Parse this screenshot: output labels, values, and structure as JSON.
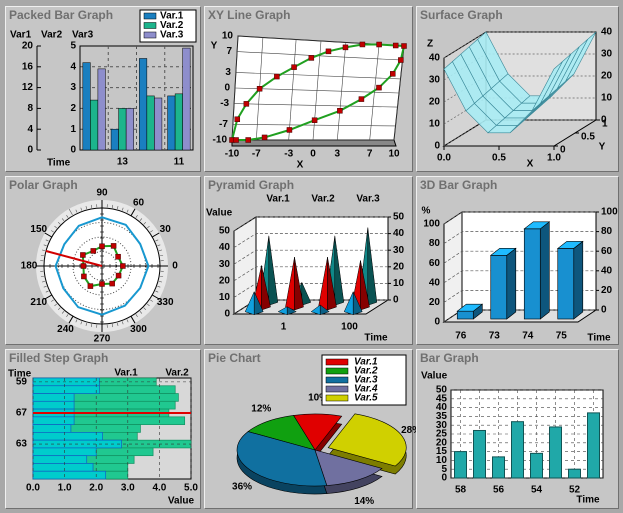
{
  "chart_data": [
    {
      "type": "packed_bar",
      "title": "Packed Bar Graph",
      "series_labels": [
        "Var1",
        "Var2",
        "Var3"
      ],
      "categories": [
        null,
        "13",
        null,
        "11"
      ],
      "x_label": "Time",
      "series": [
        {
          "name": "Var.1",
          "color": "#1a7fc0",
          "values": [
            4.2,
            1.0,
            4.4,
            2.6
          ]
        },
        {
          "name": "Var.2",
          "color": "#1cb48c",
          "values": [
            2.4,
            2.0,
            2.6,
            2.7
          ]
        },
        {
          "name": "Var.3",
          "color": "#8e8ecc",
          "values": [
            3.9,
            2.0,
            2.5,
            4.9
          ]
        }
      ],
      "ylim": [
        0,
        5
      ],
      "yticks": [
        0,
        1,
        2,
        3,
        4,
        5
      ],
      "y2lim": [
        0,
        20
      ],
      "y2ticks": [
        0,
        4,
        8,
        12,
        16,
        20
      ],
      "grid": true
    },
    {
      "type": "xy_line",
      "title": "XY Line Graph",
      "x_label": "X",
      "y_label": "Y",
      "xlim": [
        -10,
        10
      ],
      "xticks": [
        -10,
        -7,
        -3,
        0,
        3,
        7,
        10
      ],
      "ylim": [
        -10,
        10
      ],
      "yticks": [
        -10,
        -7,
        -3,
        0,
        3,
        7,
        10
      ],
      "series": [
        {
          "color": "#20a020",
          "marker_color": "#c00000",
          "x": [
            -10,
            -9.5,
            -8.5,
            -7,
            -5,
            -3,
            -1,
            1,
            3,
            5,
            7,
            9,
            10,
            9.8,
            9,
            7.5,
            5.5,
            3,
            0,
            -3,
            -6,
            -8,
            -9.5
          ],
          "y": [
            -10,
            -6,
            -3,
            0,
            2.5,
            4.5,
            6.5,
            8,
            9,
            9.8,
            10,
            10,
            10,
            7,
            4,
            1,
            -1.5,
            -4,
            -6,
            -8,
            -9.5,
            -10,
            -10
          ]
        }
      ]
    },
    {
      "type": "surface",
      "title": "Surface Graph",
      "x_label": "X",
      "y_label": "Y",
      "z_label": "Z",
      "x": [
        0,
        0.2,
        0.4,
        0.6,
        0.8,
        1.0
      ],
      "y": [
        0,
        0.2,
        0.4,
        0.6,
        0.8,
        1.0
      ],
      "z": [
        [
          35,
          16,
          6,
          6,
          16,
          35
        ],
        [
          36,
          17,
          7,
          7,
          17,
          36
        ],
        [
          37,
          18,
          8,
          8,
          18,
          37
        ],
        [
          38,
          19,
          9,
          9,
          19,
          38
        ],
        [
          39,
          20,
          10,
          10,
          20,
          39
        ],
        [
          40,
          21,
          11,
          11,
          21,
          40
        ]
      ],
      "xlim": [
        0,
        1
      ],
      "xticks": [
        {
          "value": 0,
          "label": "0.0"
        },
        {
          "value": 0.5,
          "label": "0.5"
        },
        {
          "value": 1,
          "label": "1.0"
        }
      ],
      "ylim": [
        0,
        1
      ],
      "yticks": [
        0,
        0.5,
        1
      ],
      "zlim": [
        0,
        40
      ],
      "zticks": [
        0,
        10,
        20,
        30,
        40
      ],
      "color": "#a8ecf4"
    },
    {
      "type": "polar",
      "title": "Polar Graph",
      "rlim": [
        0,
        10
      ],
      "thetaticks": [
        0,
        30,
        60,
        90,
        150,
        180,
        210,
        240,
        270,
        300,
        330
      ],
      "series": [
        {
          "color": "#1898d0",
          "theta": [
            0,
            30,
            60,
            90,
            120,
            150,
            180,
            210,
            240,
            270,
            300,
            330
          ],
          "r": [
            8,
            7.6,
            8.2,
            8.4,
            8,
            7.5,
            8,
            7.7,
            8.2,
            8.4,
            7.9,
            7.6
          ]
        },
        {
          "color": "#20a020",
          "marker_color": "#c00000",
          "theta": [
            0,
            30,
            60,
            90,
            120,
            150,
            180,
            210,
            240,
            270,
            300,
            330
          ],
          "r": [
            3.6,
            3.2,
            4,
            3.4,
            3,
            3.8,
            3.2,
            3.6,
            4,
            3.1,
            3.5,
            3.3
          ]
        },
        {
          "color": "#d00000",
          "theta": [
            165
          ],
          "r": [
            10
          ]
        }
      ]
    },
    {
      "type": "pyramid",
      "title": "Pyramid Graph",
      "y_label": "Value",
      "x_label": "Time",
      "categories": [
        null,
        "1",
        null,
        "100"
      ],
      "series": [
        {
          "name": "Var.1",
          "color": "#10a0e0",
          "values": [
            12,
            3,
            4,
            12
          ]
        },
        {
          "name": "Var.2",
          "color": "#e00000",
          "values": [
            25,
            30,
            30,
            28
          ]
        },
        {
          "name": "Var.3",
          "color": "#108888",
          "values": [
            40,
            12,
            40,
            45
          ]
        }
      ],
      "ylim": [
        0,
        50
      ],
      "yticks": [
        0,
        10,
        20,
        30,
        40,
        50
      ],
      "y2lim": [
        0,
        50
      ],
      "y2ticks": [
        0,
        10,
        20,
        30,
        40,
        50
      ]
    },
    {
      "type": "bar3d",
      "title": "3D Bar Graph",
      "y_label": "%",
      "x_label": "Time",
      "categories": [
        "76",
        "73",
        "74",
        "75"
      ],
      "values": [
        8,
        65,
        92,
        72
      ],
      "color": "#1890d0",
      "ylim": [
        0,
        100
      ],
      "yticks": [
        0,
        20,
        40,
        60,
        80,
        100
      ],
      "y2lim": [
        0,
        100
      ],
      "y2ticks": [
        0,
        20,
        40,
        60,
        80,
        100
      ]
    },
    {
      "type": "filled_step_h",
      "title": "Filled Step Graph",
      "y_label": "Time",
      "x_label": "Value",
      "categories": [
        "59",
        null,
        null,
        null,
        "67",
        null,
        null,
        null,
        "63",
        null,
        null,
        null,
        null
      ],
      "series": [
        {
          "name": "Var.1",
          "color": "#1060c0",
          "fill": "#00cccc",
          "values": [
            2.1,
            2.1,
            1.3,
            1.3,
            1.3,
            1.3,
            1.2,
            2.2,
            2.8,
            2.0,
            1.7,
            1.9,
            2.3
          ]
        },
        {
          "name": "Var.2",
          "color": "#109060",
          "fill": "#20c890",
          "values": [
            3.9,
            4.5,
            4.6,
            4.5,
            4.3,
            4.8,
            3.4,
            3.3,
            5.0,
            3.8,
            3.2,
            3.0,
            3.0
          ]
        }
      ],
      "reference_line": {
        "category": 4,
        "color": "#e00000"
      },
      "xlim": [
        0,
        5
      ],
      "xticks": [
        {
          "value": 0,
          "label": "0.0"
        },
        {
          "value": 1,
          "label": "1.0"
        },
        {
          "value": 2,
          "label": "2.0"
        },
        {
          "value": 3,
          "label": "3.0"
        },
        {
          "value": 4,
          "label": "4.0"
        },
        {
          "value": 5,
          "label": "5.0"
        }
      ],
      "grid": true
    },
    {
      "type": "pie",
      "title": "Pie Chart",
      "categories": [
        "Var.1",
        "Var.2",
        "Var.3",
        "Var.4",
        "Var.5"
      ],
      "values": [
        10,
        12,
        36,
        14,
        28
      ],
      "value_labels": [
        "10%",
        "12%",
        "36%",
        "14%",
        "28%"
      ],
      "colors": [
        "#e00000",
        "#10a010",
        "#1070a0",
        "#7070a0",
        "#d0d000"
      ],
      "exploded": [
        false,
        false,
        false,
        false,
        true
      ]
    },
    {
      "type": "bar",
      "title": "Bar Graph",
      "y_label": "Value",
      "x_label": "Time",
      "categories": [
        "58",
        null,
        "56",
        null,
        "54",
        null,
        "52",
        null
      ],
      "values": [
        15,
        27,
        12,
        32,
        14,
        29,
        5,
        37
      ],
      "color": "#20a8a8",
      "ylim": [
        0,
        50
      ],
      "yticks": [
        0,
        5,
        10,
        15,
        20,
        25,
        30,
        35,
        40,
        45,
        50
      ],
      "grid": true
    }
  ]
}
